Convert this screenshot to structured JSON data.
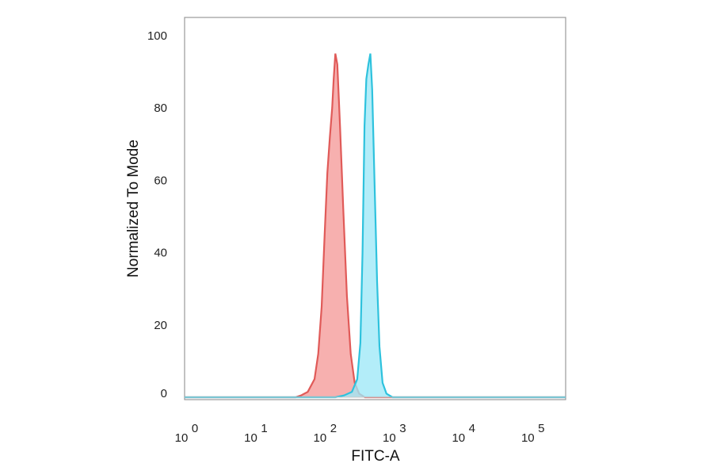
{
  "chart_data": {
    "type": "area",
    "title": "",
    "xlabel": "FITC-A",
    "ylabel": "Normalized To Mode",
    "x_scale": "log",
    "xlim": [
      1,
      316228
    ],
    "ylim": [
      0,
      105
    ],
    "grid": false,
    "legend": "none",
    "x_ticks": [
      {
        "base": "10",
        "exp": "0",
        "value": 1
      },
      {
        "base": "10",
        "exp": "1",
        "value": 10
      },
      {
        "base": "10",
        "exp": "2",
        "value": 100
      },
      {
        "base": "10",
        "exp": "3",
        "value": 1000
      },
      {
        "base": "10",
        "exp": "4",
        "value": 10000
      },
      {
        "base": "10",
        "exp": "5",
        "value": 100000
      }
    ],
    "y_ticks": [
      "0",
      "20",
      "40",
      "60",
      "80",
      "100"
    ],
    "series": [
      {
        "color": "#e05a58",
        "fill": "#f59a98",
        "points": [
          [
            1,
            0
          ],
          [
            40,
            0
          ],
          [
            48,
            0.5
          ],
          [
            60,
            1.5
          ],
          [
            75,
            5
          ],
          [
            85,
            12
          ],
          [
            95,
            25
          ],
          [
            105,
            45
          ],
          [
            115,
            62
          ],
          [
            125,
            72
          ],
          [
            135,
            80
          ],
          [
            142,
            88
          ],
          [
            150,
            95
          ],
          [
            160,
            92
          ],
          [
            175,
            75
          ],
          [
            195,
            52
          ],
          [
            220,
            28
          ],
          [
            250,
            12
          ],
          [
            285,
            4
          ],
          [
            330,
            1
          ],
          [
            400,
            0
          ],
          [
            316228,
            0
          ]
        ]
      },
      {
        "color": "#2ec2dd",
        "fill": "#9ee8f7",
        "points": [
          [
            1,
            0
          ],
          [
            150,
            0
          ],
          [
            200,
            0.5
          ],
          [
            260,
            1.5
          ],
          [
            310,
            5
          ],
          [
            345,
            15
          ],
          [
            370,
            40
          ],
          [
            395,
            75
          ],
          [
            420,
            88
          ],
          [
            450,
            92
          ],
          [
            480,
            95
          ],
          [
            510,
            85
          ],
          [
            550,
            60
          ],
          [
            600,
            32
          ],
          [
            650,
            14
          ],
          [
            720,
            4
          ],
          [
            820,
            1
          ],
          [
            1000,
            0
          ],
          [
            316228,
            0
          ]
        ]
      }
    ]
  }
}
